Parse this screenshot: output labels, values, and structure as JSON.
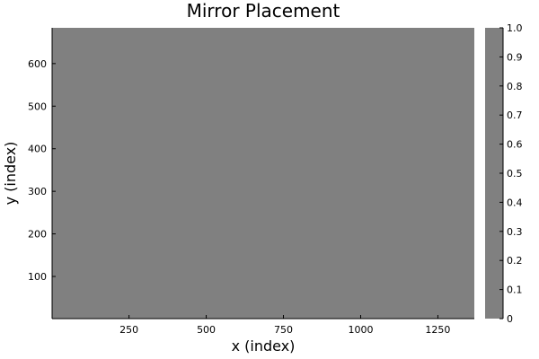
{
  "chart_data": {
    "type": "heatmap",
    "title": "Mirror Placement",
    "xlabel": "x (index)",
    "ylabel": "y (index)",
    "xlim": [
      1,
      1368
    ],
    "ylim": [
      1,
      684
    ],
    "xticks": [
      250,
      500,
      750,
      1000,
      1250
    ],
    "yticks": [
      100,
      200,
      300,
      400,
      500,
      600
    ],
    "values": "uniform",
    "fill_value": 0.5,
    "colorbar": {
      "ticks": [
        0,
        0.1,
        0.2,
        0.3,
        0.4,
        0.5,
        0.6,
        0.7,
        0.8,
        0.9,
        1.0
      ],
      "tick_labels": [
        "0",
        "0.1",
        "0.2",
        "0.3",
        "0.4",
        "0.5",
        "0.6",
        "0.7",
        "0.8",
        "0.9",
        "1.0"
      ],
      "range": [
        0,
        1
      ],
      "color": "#808080"
    },
    "grid": false,
    "legend": "none"
  }
}
